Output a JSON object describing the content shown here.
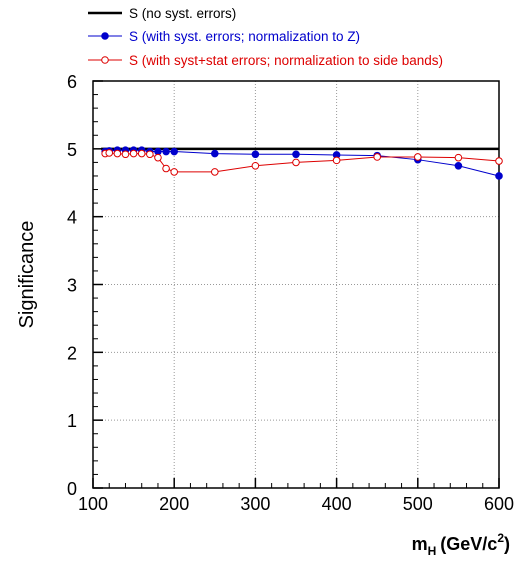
{
  "chart_data": {
    "type": "line",
    "ylabel": "Significance",
    "xlabel_main": "m",
    "xlabel_sub": "H",
    "xlabel_unit_prefix": "(GeV/c",
    "xlabel_unit_sup": "2",
    "xlabel_unit_suffix": ")",
    "xlim": [
      100,
      600
    ],
    "ylim": [
      0,
      6
    ],
    "xticks": [
      100,
      200,
      300,
      400,
      500,
      600
    ],
    "yticks": [
      0,
      1,
      2,
      3,
      4,
      5,
      6
    ],
    "grid": true,
    "legend_position": "top-left, above plot",
    "series": [
      {
        "name": "S (no syst. errors)",
        "color": "#000000",
        "marker": "none",
        "x": [
          110,
          600
        ],
        "y": [
          5.0,
          5.0
        ]
      },
      {
        "name": "S (with syst. errors; normalization to Z)",
        "color": "#0000cc",
        "marker": "filled-circle",
        "x": [
          115,
          120,
          130,
          140,
          150,
          160,
          170,
          180,
          190,
          200,
          250,
          300,
          350,
          400,
          450,
          500,
          550,
          600
        ],
        "y": [
          4.96,
          4.97,
          4.98,
          4.98,
          4.98,
          4.98,
          4.96,
          4.96,
          4.96,
          4.96,
          4.93,
          4.92,
          4.92,
          4.91,
          4.9,
          4.84,
          4.75,
          4.6
        ]
      },
      {
        "name": "S (with syst+stat errors; normalization to side bands)",
        "color": "#dd0000",
        "marker": "open-circle",
        "x": [
          115,
          120,
          130,
          140,
          150,
          160,
          170,
          180,
          190,
          200,
          250,
          300,
          350,
          400,
          450,
          500,
          550,
          600
        ],
        "y": [
          4.93,
          4.94,
          4.93,
          4.92,
          4.93,
          4.93,
          4.92,
          4.87,
          4.71,
          4.66,
          4.66,
          4.75,
          4.8,
          4.83,
          4.88,
          4.88,
          4.87,
          4.82
        ]
      }
    ]
  }
}
